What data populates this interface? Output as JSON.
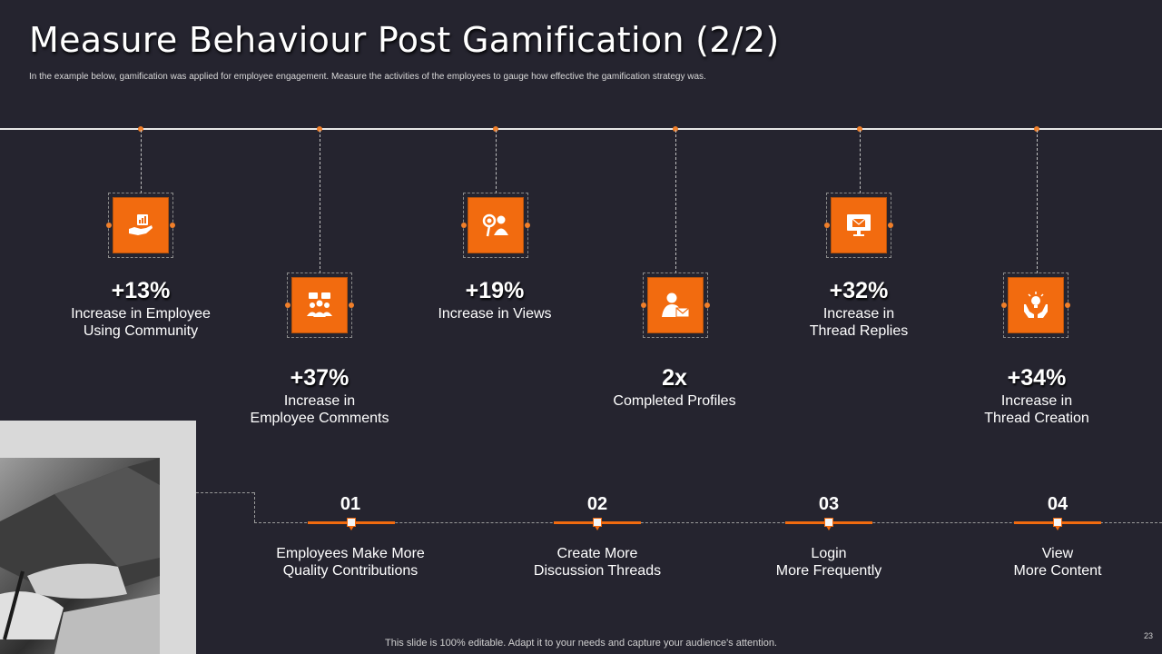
{
  "header": {
    "title": "Measure Behaviour Post Gamification (2/2)",
    "subtitle": "In the example below, gamification was applied for employee engagement. Measure the activities of the employees to gauge how effective the gamification strategy was."
  },
  "stats": [
    {
      "value": "+13%",
      "line1": "Increase in Employee",
      "line2": "Using Community",
      "icon": "hand-chart-icon"
    },
    {
      "value": "+37%",
      "line1": "Increase in",
      "line2": "Employee Comments",
      "icon": "team-chat-icon"
    },
    {
      "value": "+19%",
      "line1": "Increase in Views",
      "line2": "",
      "icon": "user-search-icon"
    },
    {
      "value": "2x",
      "line1": "Completed Profiles",
      "line2": "",
      "icon": "user-mail-icon"
    },
    {
      "value": "+32%",
      "line1": "Increase in",
      "line2": "Thread Replies",
      "icon": "monitor-mail-icon"
    },
    {
      "value": "+34%",
      "line1": "Increase in",
      "line2": "Thread Creation",
      "icon": "idea-hands-icon"
    }
  ],
  "steps": [
    {
      "num": "01",
      "line1": "Employees Make More",
      "line2": "Quality Contributions"
    },
    {
      "num": "02",
      "line1": "Create More",
      "line2": "Discussion Threads"
    },
    {
      "num": "03",
      "line1": "Login",
      "line2": "More Frequently"
    },
    {
      "num": "04",
      "line1": "View",
      "line2": "More Content"
    }
  ],
  "footer": {
    "text": "This slide is 100% editable. Adapt it to your needs and capture your audience's attention.",
    "page_number": "23"
  },
  "colors": {
    "accent": "#f26b0f",
    "background": "#25242f"
  }
}
